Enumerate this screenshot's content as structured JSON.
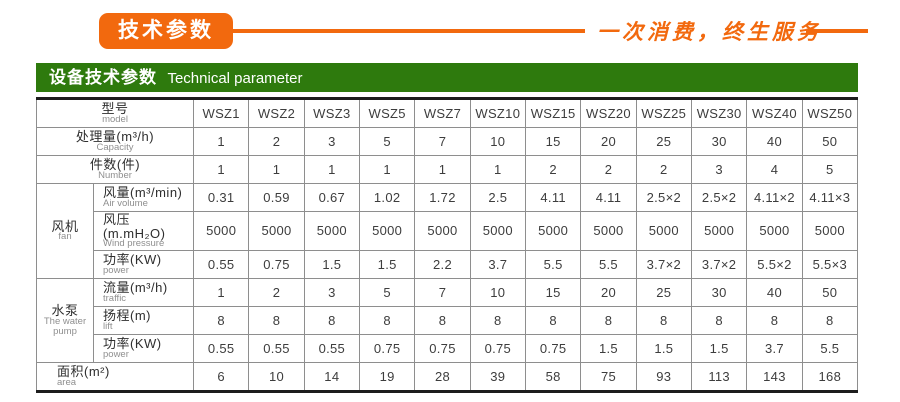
{
  "colors": {
    "orange": "#f2690e",
    "green": "#2e7a0d",
    "table_border_dark": "#1d1d1d",
    "table_border_light": "#8e8e8e"
  },
  "banner": {
    "badge_label": "技术参数",
    "slogan": "一次消费，终生服务"
  },
  "section_header": {
    "title_zh": "设备技术参数",
    "title_en": "Technical parameter"
  },
  "table": {
    "rows": [
      {
        "id": "model",
        "span2": true,
        "label_zh": "型号",
        "label_en": "model",
        "values": [
          "WSZ1",
          "WSZ2",
          "WSZ3",
          "WSZ5",
          "WSZ7",
          "WSZ10",
          "WSZ15",
          "WSZ20",
          "WSZ25",
          "WSZ30",
          "WSZ40",
          "WSZ50"
        ]
      },
      {
        "id": "capacity",
        "span2": true,
        "label_zh": "处理量(m³/h)",
        "label_en": "Capacity",
        "values": [
          "1",
          "2",
          "3",
          "5",
          "7",
          "10",
          "15",
          "20",
          "25",
          "30",
          "40",
          "50"
        ]
      },
      {
        "id": "number",
        "span2": true,
        "label_zh": "件数(件)",
        "label_en": "Number",
        "values": [
          "1",
          "1",
          "1",
          "1",
          "1",
          "1",
          "2",
          "2",
          "2",
          "3",
          "4",
          "5"
        ]
      },
      {
        "id": "air-volume",
        "group": {
          "id": "fan",
          "zh": "风机",
          "en": "fan",
          "span": 3
        },
        "label_zh": "风量(m³/min)",
        "label_en": "Air volume",
        "values": [
          "0.31",
          "0.59",
          "0.67",
          "1.02",
          "1.72",
          "2.5",
          "4.11",
          "4.11",
          "2.5×2",
          "2.5×2",
          "4.11×2",
          "4.11×3"
        ]
      },
      {
        "id": "wind-pressure",
        "label_zh": "风压(m.mH₂O)",
        "label_en": "Wind pressure",
        "values": [
          "5000",
          "5000",
          "5000",
          "5000",
          "5000",
          "5000",
          "5000",
          "5000",
          "5000",
          "5000",
          "5000",
          "5000"
        ]
      },
      {
        "id": "fan-power",
        "label_zh": "功率(KW)",
        "label_en": "power",
        "values": [
          "0.55",
          "0.75",
          "1.5",
          "1.5",
          "2.2",
          "3.7",
          "5.5",
          "5.5",
          "3.7×2",
          "3.7×2",
          "5.5×2",
          "5.5×3"
        ]
      },
      {
        "id": "traffic",
        "group": {
          "id": "water-pump",
          "zh": "水泵",
          "en": "The water pump",
          "span": 3
        },
        "label_zh": "流量(m³/h)",
        "label_en": "traffic",
        "values": [
          "1",
          "2",
          "3",
          "5",
          "7",
          "10",
          "15",
          "20",
          "25",
          "30",
          "40",
          "50"
        ]
      },
      {
        "id": "lift",
        "label_zh": "扬程(m)",
        "label_en": "lift",
        "values": [
          "8",
          "8",
          "8",
          "8",
          "8",
          "8",
          "8",
          "8",
          "8",
          "8",
          "8",
          "8"
        ]
      },
      {
        "id": "pump-power",
        "label_zh": "功率(KW)",
        "label_en": "power",
        "values": [
          "0.55",
          "0.55",
          "0.55",
          "0.75",
          "0.75",
          "0.75",
          "0.75",
          "1.5",
          "1.5",
          "1.5",
          "3.7",
          "5.5"
        ]
      },
      {
        "id": "area",
        "span2": true,
        "align": "left",
        "label_zh": "面积(m²)",
        "label_en": "area",
        "values": [
          "6",
          "10",
          "14",
          "19",
          "28",
          "39",
          "58",
          "75",
          "93",
          "113",
          "143",
          "168"
        ]
      }
    ]
  }
}
